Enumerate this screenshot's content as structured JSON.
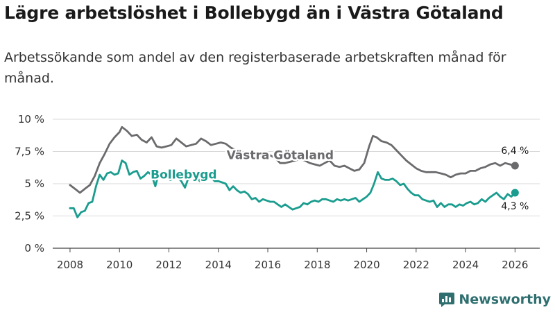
{
  "title": "Lägre arbetslöshet i Bollebygd än i Västra Götaland",
  "subtitle": "Arbetssökande som andel av den registerbaserade arbetskraften månad för månad.",
  "brand": {
    "name": "Newsworthy",
    "icon": "chart-logo-icon",
    "color": "#2f6f70"
  },
  "chart_data": {
    "type": "line",
    "xlabel": "",
    "ylabel": "",
    "xlim": [
      2007.3,
      2027.0
    ],
    "ylim": [
      0,
      10
    ],
    "grid": true,
    "y_ticks": [
      {
        "value": 0,
        "label": "0 %"
      },
      {
        "value": 2.5,
        "label": "2,5 %"
      },
      {
        "value": 5,
        "label": "5 %"
      },
      {
        "value": 7.5,
        "label": "7,5 %"
      },
      {
        "value": 10,
        "label": "10 %"
      }
    ],
    "x_ticks": [
      {
        "value": 2008,
        "label": "2008"
      },
      {
        "value": 2010,
        "label": "2010"
      },
      {
        "value": 2012,
        "label": "2012"
      },
      {
        "value": 2014,
        "label": "2014"
      },
      {
        "value": 2016,
        "label": "2016"
      },
      {
        "value": 2018,
        "label": "2018"
      },
      {
        "value": 2020,
        "label": "2020"
      },
      {
        "value": 2022,
        "label": "2022"
      },
      {
        "value": 2024,
        "label": "2024"
      },
      {
        "value": 2026,
        "label": "2026"
      }
    ],
    "series": [
      {
        "name": "Västra Götaland",
        "color": "#6b6b6e",
        "label_at": [
          2016.5,
          6.9
        ],
        "end_label": "6,4 %",
        "end_label_pos": "above",
        "x": [
          2008.0,
          2008.2,
          2008.4,
          2008.6,
          2008.8,
          2009.0,
          2009.2,
          2009.4,
          2009.6,
          2009.8,
          2010.0,
          2010.1,
          2010.3,
          2010.5,
          2010.7,
          2010.9,
          2011.1,
          2011.3,
          2011.5,
          2011.7,
          2011.9,
          2012.1,
          2012.3,
          2012.5,
          2012.7,
          2012.9,
          2013.1,
          2013.3,
          2013.5,
          2013.7,
          2013.9,
          2014.1,
          2014.3,
          2014.5,
          2014.7,
          2014.9,
          2015.1,
          2015.3,
          2015.5,
          2015.7,
          2015.9,
          2016.1,
          2016.3,
          2016.5,
          2016.7,
          2016.9,
          2017.1,
          2017.3,
          2017.5,
          2017.7,
          2017.9,
          2018.1,
          2018.3,
          2018.5,
          2018.7,
          2018.9,
          2019.1,
          2019.3,
          2019.5,
          2019.7,
          2019.9,
          2020.1,
          2020.25,
          2020.4,
          2020.6,
          2020.8,
          2021.0,
          2021.2,
          2021.4,
          2021.6,
          2021.8,
          2022.0,
          2022.2,
          2022.4,
          2022.6,
          2022.8,
          2023.0,
          2023.2,
          2023.4,
          2023.6,
          2023.8,
          2024.0,
          2024.2,
          2024.4,
          2024.6,
          2024.8,
          2025.0,
          2025.2,
          2025.4,
          2025.6,
          2025.8,
          2026.0
        ],
        "values": [
          4.9,
          4.6,
          4.3,
          4.6,
          4.9,
          5.6,
          6.6,
          7.3,
          8.1,
          8.6,
          9.0,
          9.4,
          9.1,
          8.7,
          8.8,
          8.4,
          8.2,
          8.6,
          7.9,
          7.8,
          7.9,
          8.0,
          8.5,
          8.2,
          7.9,
          8.0,
          8.1,
          8.5,
          8.3,
          8.0,
          8.1,
          8.2,
          8.1,
          7.8,
          7.6,
          7.4,
          7.3,
          7.5,
          7.3,
          7.1,
          7.1,
          7.2,
          7.0,
          6.6,
          6.6,
          6.7,
          6.8,
          6.9,
          6.8,
          6.6,
          6.5,
          6.4,
          6.6,
          6.8,
          6.4,
          6.3,
          6.4,
          6.2,
          6.0,
          6.1,
          6.6,
          7.9,
          8.7,
          8.6,
          8.3,
          8.2,
          8.0,
          7.6,
          7.2,
          6.8,
          6.5,
          6.2,
          6.0,
          5.9,
          5.9,
          5.9,
          5.8,
          5.7,
          5.5,
          5.7,
          5.8,
          5.8,
          6.0,
          6.0,
          6.2,
          6.3,
          6.5,
          6.6,
          6.4,
          6.6,
          6.5,
          6.4
        ]
      },
      {
        "name": "Bollebygd",
        "color": "#1a9c8e",
        "label_at": [
          2012.6,
          5.4
        ],
        "end_label": "4,3 %",
        "end_label_pos": "below",
        "x": [
          2008.0,
          2008.15,
          2008.3,
          2008.45,
          2008.6,
          2008.75,
          2008.9,
          2009.05,
          2009.2,
          2009.35,
          2009.5,
          2009.65,
          2009.8,
          2009.95,
          2010.1,
          2010.25,
          2010.4,
          2010.55,
          2010.7,
          2010.85,
          2011.0,
          2011.15,
          2011.3,
          2011.45,
          2011.6,
          2011.75,
          2011.9,
          2012.05,
          2012.2,
          2012.35,
          2012.5,
          2012.65,
          2012.8,
          2012.95,
          2013.1,
          2013.25,
          2013.4,
          2013.55,
          2013.7,
          2013.85,
          2014.0,
          2014.15,
          2014.3,
          2014.45,
          2014.6,
          2014.75,
          2014.9,
          2015.05,
          2015.2,
          2015.35,
          2015.5,
          2015.65,
          2015.8,
          2015.95,
          2016.1,
          2016.25,
          2016.4,
          2016.55,
          2016.7,
          2016.85,
          2017.0,
          2017.15,
          2017.3,
          2017.45,
          2017.6,
          2017.75,
          2017.9,
          2018.05,
          2018.2,
          2018.35,
          2018.5,
          2018.65,
          2018.8,
          2018.95,
          2019.1,
          2019.25,
          2019.4,
          2019.55,
          2019.7,
          2019.85,
          2020.0,
          2020.15,
          2020.3,
          2020.45,
          2020.6,
          2020.75,
          2020.9,
          2021.05,
          2021.2,
          2021.35,
          2021.5,
          2021.65,
          2021.8,
          2021.95,
          2022.1,
          2022.25,
          2022.4,
          2022.55,
          2022.7,
          2022.85,
          2023.0,
          2023.15,
          2023.3,
          2023.45,
          2023.6,
          2023.75,
          2023.9,
          2024.05,
          2024.2,
          2024.35,
          2024.5,
          2024.65,
          2024.8,
          2024.95,
          2025.1,
          2025.25,
          2025.4,
          2025.55,
          2025.7,
          2025.85,
          2026.0
        ],
        "values": [
          3.1,
          3.1,
          2.4,
          2.8,
          2.9,
          3.5,
          3.6,
          4.8,
          5.7,
          5.3,
          5.8,
          5.9,
          5.7,
          5.8,
          6.8,
          6.6,
          5.7,
          5.9,
          6.0,
          5.4,
          5.6,
          5.9,
          5.7,
          4.8,
          5.9,
          5.6,
          5.6,
          5.3,
          5.4,
          5.5,
          5.2,
          4.7,
          5.5,
          5.4,
          5.6,
          5.2,
          5.3,
          5.4,
          5.5,
          5.2,
          5.2,
          5.1,
          5.0,
          4.5,
          4.8,
          4.5,
          4.3,
          4.4,
          4.2,
          3.8,
          3.9,
          3.6,
          3.8,
          3.7,
          3.6,
          3.6,
          3.4,
          3.2,
          3.4,
          3.2,
          3.0,
          3.1,
          3.2,
          3.5,
          3.4,
          3.6,
          3.7,
          3.6,
          3.8,
          3.8,
          3.7,
          3.6,
          3.8,
          3.7,
          3.8,
          3.7,
          3.8,
          3.9,
          3.6,
          3.8,
          4.0,
          4.3,
          5.0,
          5.9,
          5.4,
          5.3,
          5.3,
          5.4,
          5.2,
          4.9,
          5.0,
          4.6,
          4.3,
          4.1,
          4.1,
          3.8,
          3.7,
          3.6,
          3.7,
          3.2,
          3.5,
          3.2,
          3.4,
          3.4,
          3.2,
          3.4,
          3.3,
          3.5,
          3.6,
          3.4,
          3.5,
          3.8,
          3.6,
          3.9,
          4.1,
          4.3,
          4.0,
          3.8,
          4.2,
          4.0,
          4.3
        ]
      }
    ]
  }
}
